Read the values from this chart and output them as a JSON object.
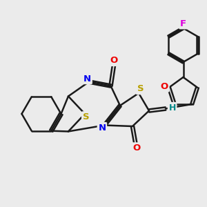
{
  "bg_color": "#ebebeb",
  "bond_color": "#1a1a1a",
  "atom_colors": {
    "S": "#b8a000",
    "N": "#0000ee",
    "O": "#ee0000",
    "F": "#dd00dd",
    "H": "#008888",
    "C": "#1a1a1a"
  },
  "bond_width": 1.8,
  "font_size": 9.5,
  "fig_size": [
    3.0,
    3.0
  ],
  "dpi": 100
}
